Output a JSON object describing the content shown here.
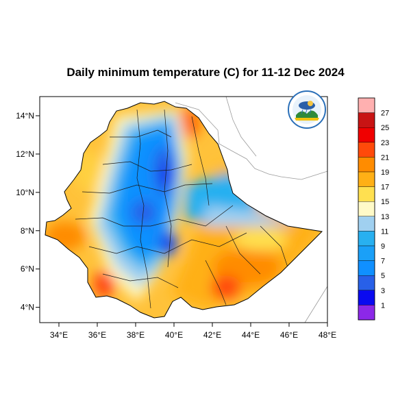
{
  "title": "Daily minimum temperature (C) for 11-12 Dec 2024",
  "map": {
    "lon_range": [
      33.0,
      48.0
    ],
    "lat_range": [
      3.2,
      15.0
    ],
    "x_ticks": [
      {
        "value": 34,
        "label": "34°E"
      },
      {
        "value": 36,
        "label": "36°E"
      },
      {
        "value": 38,
        "label": "38°E"
      },
      {
        "value": 40,
        "label": "40°E"
      },
      {
        "value": 42,
        "label": "42°E"
      },
      {
        "value": 44,
        "label": "44°E"
      },
      {
        "value": 46,
        "label": "46°E"
      },
      {
        "value": 48,
        "label": "48°E"
      }
    ],
    "y_ticks": [
      {
        "value": 4,
        "label": "4°N"
      },
      {
        "value": 6,
        "label": "6°N"
      },
      {
        "value": 8,
        "label": "8°N"
      },
      {
        "value": 10,
        "label": "10°N"
      },
      {
        "value": 12,
        "label": "12°N"
      },
      {
        "value": 14,
        "label": "14°N"
      }
    ]
  },
  "colorbar": {
    "colors": [
      "#ffb0b0",
      "#c81414",
      "#f00000",
      "#ff4a0a",
      "#ff8c00",
      "#ffb016",
      "#ffe050",
      "#fffac8",
      "#a0d0f0",
      "#28b0f0",
      "#1aa0f8",
      "#1090ff",
      "#2860e8",
      "#0a0af0",
      "#8c28e8"
    ],
    "labels": [
      "27",
      "25",
      "23",
      "21",
      "19",
      "17",
      "15",
      "13",
      "11",
      "9",
      "7",
      "5",
      "3",
      "1"
    ]
  },
  "logo": {
    "name": "ethiopian-meteorology-institute-logo"
  }
}
